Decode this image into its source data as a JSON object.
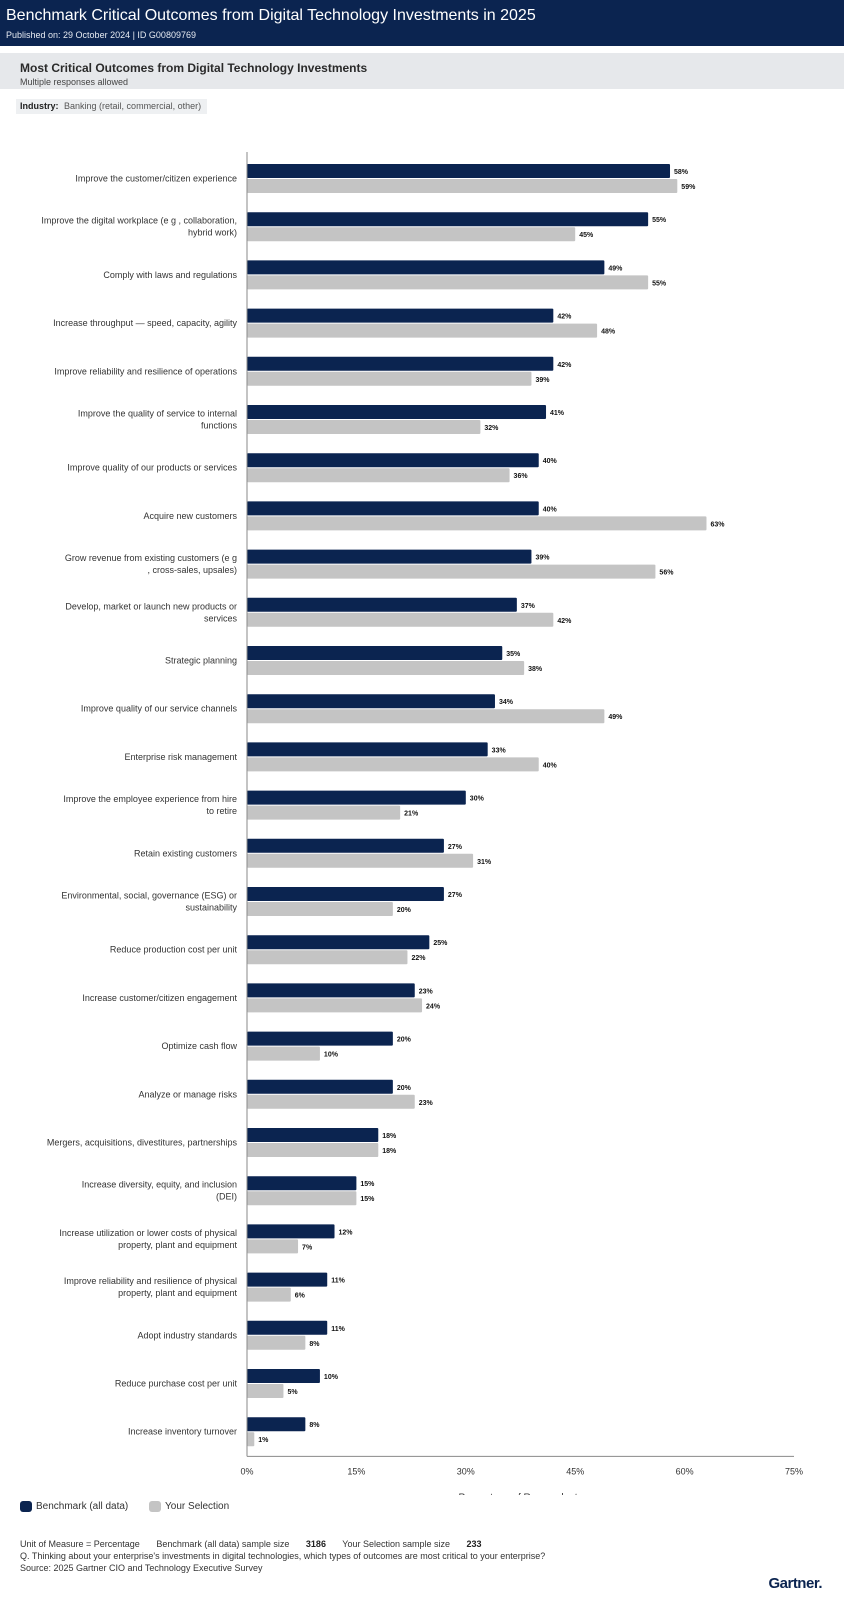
{
  "header": {
    "title": "Benchmark Critical Outcomes from Digital Technology Investments in 2025",
    "published": "Published on: 29 October 2024 | ID G00809769"
  },
  "section": {
    "heading": "Most Critical Outcomes from Digital Technology Investments",
    "note": "Multiple responses allowed"
  },
  "filter": {
    "label": "Industry:",
    "value": "Banking (retail, commercial, other)"
  },
  "colors": {
    "benchmark": "#0b2450",
    "selection": "#c4c4c4",
    "axis": "#8a8a8a"
  },
  "chart_data": {
    "type": "bar",
    "orientation": "horizontal",
    "xlabel": "Percentage of Respondents",
    "xlim": [
      0,
      75
    ],
    "xticks": [
      "0%",
      "15%",
      "30%",
      "45%",
      "60%",
      "75%"
    ],
    "xtick_values": [
      0,
      15,
      30,
      45,
      60,
      75
    ],
    "categories": [
      [
        "Improve the customer/citizen experience"
      ],
      [
        "Improve the digital workplace (e g , collaboration,",
        "hybrid work)"
      ],
      [
        "Comply with laws and regulations"
      ],
      [
        "Increase throughput — speed, capacity, agility"
      ],
      [
        "Improve reliability and resilience of operations"
      ],
      [
        "Improve the quality of service to internal",
        "functions"
      ],
      [
        "Improve quality of our products or services"
      ],
      [
        "Acquire new customers"
      ],
      [
        "Grow revenue from existing customers (e g",
        ", cross-sales, upsales)"
      ],
      [
        "Develop, market or launch new products or",
        "services"
      ],
      [
        "Strategic planning"
      ],
      [
        "Improve quality of our service channels"
      ],
      [
        "Enterprise risk management"
      ],
      [
        "Improve the employee experience from hire",
        "to retire"
      ],
      [
        "Retain existing customers"
      ],
      [
        "Environmental, social, governance (ESG) or",
        "sustainability"
      ],
      [
        "Reduce production cost per unit"
      ],
      [
        "Increase customer/citizen engagement"
      ],
      [
        "Optimize cash flow"
      ],
      [
        "Analyze or manage risks"
      ],
      [
        "Mergers, acquisitions, divestitures, partnerships"
      ],
      [
        "Increase diversity, equity, and inclusion",
        "(DEI)"
      ],
      [
        "Increase utilization or lower costs of physical",
        "property, plant and equipment"
      ],
      [
        "Improve reliability and resilience of physical",
        "property, plant and equipment"
      ],
      [
        "Adopt industry standards"
      ],
      [
        "Reduce purchase cost per unit"
      ],
      [
        "Increase inventory turnover"
      ]
    ],
    "series": [
      {
        "name": "Benchmark (all data)",
        "values": [
          58,
          55,
          49,
          42,
          42,
          41,
          40,
          40,
          39,
          37,
          35,
          34,
          33,
          30,
          27,
          27,
          25,
          23,
          20,
          20,
          18,
          15,
          12,
          11,
          11,
          10,
          8
        ]
      },
      {
        "name": "Your Selection",
        "values": [
          59,
          45,
          55,
          48,
          39,
          32,
          36,
          63,
          56,
          42,
          38,
          49,
          40,
          21,
          31,
          20,
          22,
          24,
          10,
          23,
          18,
          15,
          7,
          6,
          8,
          5,
          1
        ]
      }
    ],
    "value_suffix": "%",
    "grid": false,
    "legend": "bottom-left"
  },
  "footer": {
    "unit": "Unit of Measure = Percentage",
    "bench_label": "Benchmark (all data) sample size",
    "bench_n": "3186",
    "sel_label": "Your Selection sample size",
    "sel_n": "233",
    "question": "Q. Thinking about your enterprise's investments in digital technologies, which types of outcomes are most critical to your enterprise?",
    "source": "Source: 2025 Gartner CIO and Technology Executive Survey"
  },
  "brand": "Gartner."
}
